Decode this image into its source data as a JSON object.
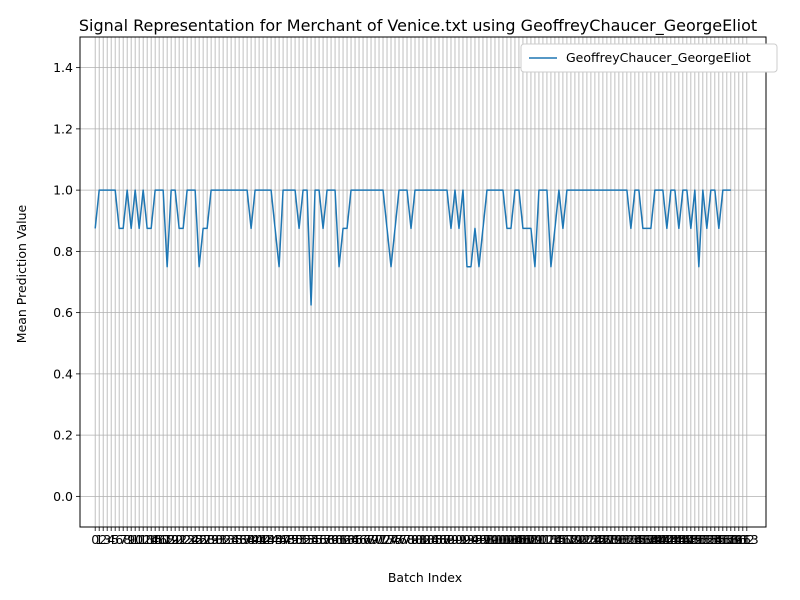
{
  "chart_data": {
    "type": "line",
    "title": "Signal Representation for Merchant of Venice.txt using GeoffreyChaucer_GeorgeEliot",
    "xlabel": "Batch Index",
    "ylabel": "Mean Prediction Value",
    "ylim": [
      -0.1,
      1.5
    ],
    "yticks": [
      "0.0",
      "0.2",
      "0.4",
      "0.6",
      "0.8",
      "1.0",
      "1.2",
      "1.4"
    ],
    "ytick_values": [
      0.0,
      0.2,
      0.4,
      0.6,
      0.8,
      1.0,
      1.2,
      1.4
    ],
    "xlim": [
      -3.8,
      167.8
    ],
    "x_range": [
      0,
      163
    ],
    "grid": true,
    "legend_position": "top-right",
    "line_color": "#1f77b4",
    "series": [
      {
        "name": "GeoffreyChaucer_GeorgeEliot",
        "values": [
          0.875,
          1,
          1,
          1,
          1,
          1,
          0.875,
          0.875,
          1,
          0.875,
          1,
          0.875,
          1,
          0.875,
          0.875,
          1,
          1,
          1,
          0.75,
          1,
          1,
          0.875,
          0.875,
          1,
          1,
          1,
          0.75,
          0.875,
          0.875,
          1,
          1,
          1,
          1,
          1,
          1,
          1,
          1,
          1,
          1,
          0.875,
          1,
          1,
          1,
          1,
          1,
          0.875,
          0.75,
          1,
          1,
          1,
          1,
          0.875,
          1,
          1,
          0.625,
          1,
          1,
          0.875,
          1,
          1,
          1,
          0.75,
          0.875,
          0.875,
          1,
          1,
          1,
          1,
          1,
          1,
          1,
          1,
          1,
          0.875,
          0.75,
          0.875,
          1,
          1,
          1,
          0.875,
          1,
          1,
          1,
          1,
          1,
          1,
          1,
          1,
          1,
          0.875,
          1,
          0.875,
          1,
          0.75,
          0.75,
          0.875,
          0.75,
          0.875,
          1,
          1,
          1,
          1,
          1,
          0.875,
          0.875,
          1,
          1,
          0.875,
          0.875,
          0.875,
          0.75,
          1,
          1,
          1,
          0.75,
          0.875,
          1,
          0.875,
          1,
          1,
          1,
          1,
          1,
          1,
          1,
          1,
          1,
          1,
          1,
          1,
          1,
          1,
          1,
          1,
          0.875,
          1,
          1,
          0.875,
          0.875,
          0.875,
          1,
          1,
          1,
          0.875,
          1,
          1,
          0.875,
          1,
          1,
          0.875,
          1,
          0.75,
          1,
          0.875,
          1,
          1,
          0.875,
          1,
          1,
          1
        ]
      }
    ]
  }
}
